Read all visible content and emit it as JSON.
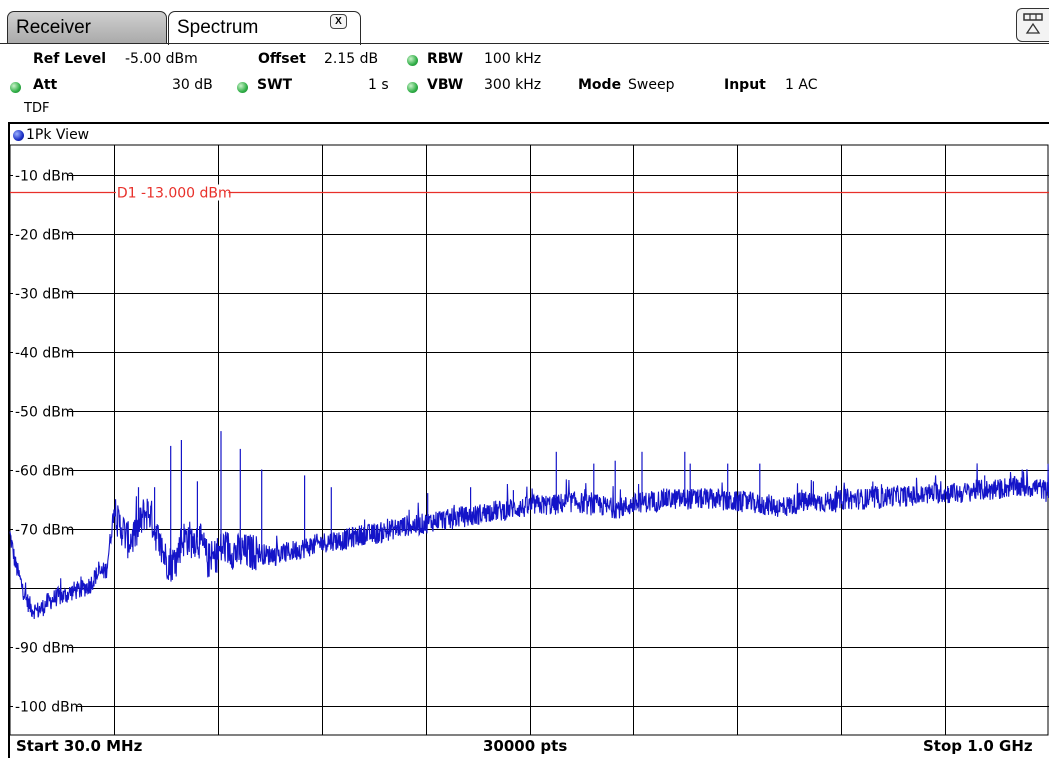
{
  "tabs": [
    {
      "label": "Receiver",
      "active": false
    },
    {
      "label": "Spectrum",
      "active": true
    }
  ],
  "tab_close_label": "X",
  "header": {
    "ref_level_label": "Ref Level",
    "ref_level_value": "-5.00 dBm",
    "offset_label": "Offset",
    "offset_value": "2.15 dB",
    "rbw_label": "RBW",
    "rbw_value": "100 kHz",
    "att_label": "Att",
    "att_value": "30 dB",
    "swt_label": "SWT",
    "swt_value": "1 s",
    "vbw_label": "VBW",
    "vbw_value": "300 kHz",
    "mode_label": "Mode",
    "mode_value": "Sweep",
    "input_label": "Input",
    "input_value": "1 AC",
    "tdf_label": "TDF"
  },
  "view_label": "1Pk View",
  "footer": {
    "start": "Start 30.0 MHz",
    "points": "30000 pts",
    "stop": "Stop 1.0 GHz"
  },
  "colors": {
    "trace": "#1414c8",
    "display_line": "#e8302a",
    "grid": "#000000",
    "led_green": "#2fae46",
    "led_blue": "#1b2fc4"
  },
  "chart_data": {
    "type": "line",
    "title": "",
    "xlabel": "",
    "ylabel": "",
    "xlim": [
      30,
      1000
    ],
    "x_unit": "MHz",
    "ylim": [
      -105,
      -5
    ],
    "y_ticks": [
      -10,
      -20,
      -30,
      -40,
      -50,
      -60,
      -70,
      -80,
      -90,
      -100
    ],
    "y_tick_labels": [
      "-10 dBm",
      "-20 dBm",
      "-30 dBm",
      "-40 dBm",
      "-50 dBm",
      "-60 dBm",
      "-70 dBm",
      "",
      "-90 dBm",
      "-100 dBm"
    ],
    "x_divisions": 10,
    "grid": true,
    "display_line": {
      "name": "D1",
      "value": -13.0,
      "label": "D1  -13.000 dBm"
    },
    "series": [
      {
        "x": [
          30,
          35,
          40,
          45,
          50,
          55,
          60,
          65,
          70,
          75,
          80,
          85,
          90,
          95,
          100,
          105,
          110,
          115,
          120,
          125,
          127,
          130,
          135,
          140,
          145,
          150,
          155,
          160,
          165,
          170,
          175,
          180,
          185,
          190,
          195,
          200,
          205,
          210,
          215,
          220,
          225,
          230,
          235,
          240,
          245,
          250,
          260,
          270,
          280,
          290,
          300,
          310,
          320,
          330,
          340,
          350,
          360,
          370,
          380,
          390,
          400,
          410,
          420,
          430,
          440,
          450,
          460,
          470,
          480,
          490,
          500,
          510,
          520,
          530,
          540,
          550,
          560,
          570,
          580,
          590,
          600,
          610,
          620,
          630,
          640,
          650,
          660,
          670,
          680,
          690,
          700,
          710,
          720,
          730,
          740,
          750,
          760,
          770,
          780,
          790,
          800,
          810,
          820,
          830,
          840,
          850,
          860,
          870,
          880,
          890,
          900,
          910,
          920,
          930,
          940,
          950,
          960,
          970,
          980,
          990,
          1000
        ],
        "values": [
          -71,
          -76,
          -79,
          -82,
          -83.5,
          -84,
          -83.5,
          -82.5,
          -82,
          -81.5,
          -81.5,
          -81,
          -80.5,
          -80.5,
          -80,
          -79.5,
          -78,
          -77.5,
          -77,
          -70,
          -67,
          -69,
          -70,
          -72,
          -71.5,
          -70,
          -67.5,
          -67,
          -70,
          -73,
          -75,
          -76,
          -75.5,
          -72,
          -71.5,
          -72,
          -71.5,
          -73,
          -75.5,
          -75,
          -74,
          -73,
          -73.5,
          -74,
          -74,
          -74,
          -74,
          -74.5,
          -74.5,
          -74,
          -73.5,
          -73,
          -72.5,
          -72,
          -72,
          -71.5,
          -71,
          -71,
          -70.5,
          -70,
          -69.5,
          -69.5,
          -69,
          -68.5,
          -68.5,
          -68,
          -68,
          -67.5,
          -67,
          -67,
          -66.5,
          -66.5,
          -66,
          -66,
          -66,
          -65.5,
          -65.5,
          -66,
          -66,
          -66.5,
          -66.5,
          -66,
          -65.5,
          -65.5,
          -65,
          -65,
          -65,
          -65,
          -65,
          -65,
          -65.5,
          -65.5,
          -65.5,
          -66,
          -66,
          -66.5,
          -66,
          -65.5,
          -65.5,
          -65.5,
          -65.5,
          -65,
          -65,
          -65,
          -65,
          -64.5,
          -64.5,
          -64.5,
          -64.5,
          -64,
          -64,
          -64,
          -64,
          -63.5,
          -63.5,
          -63.5,
          -63,
          -63,
          -63,
          -63,
          -64
        ]
      }
    ],
    "spurs": [
      {
        "x": 150,
        "value": -63
      },
      {
        "x": 165,
        "value": -63
      },
      {
        "x": 180,
        "value": -56
      },
      {
        "x": 190,
        "value": -55
      },
      {
        "x": 205,
        "value": -62
      },
      {
        "x": 227,
        "value": -53.5
      },
      {
        "x": 245,
        "value": -56.5
      },
      {
        "x": 265,
        "value": -60
      },
      {
        "x": 305,
        "value": -61
      },
      {
        "x": 330,
        "value": -63
      },
      {
        "x": 420,
        "value": -64
      },
      {
        "x": 460,
        "value": -63
      },
      {
        "x": 500,
        "value": -63.5
      },
      {
        "x": 540,
        "value": -57
      },
      {
        "x": 575,
        "value": -59
      },
      {
        "x": 595,
        "value": -58.5
      },
      {
        "x": 620,
        "value": -57
      },
      {
        "x": 660,
        "value": -57
      },
      {
        "x": 665,
        "value": -59
      },
      {
        "x": 700,
        "value": -59
      },
      {
        "x": 730,
        "value": -59
      },
      {
        "x": 780,
        "value": -62
      },
      {
        "x": 940,
        "value": -61
      },
      {
        "x": 975,
        "value": -60
      }
    ]
  }
}
